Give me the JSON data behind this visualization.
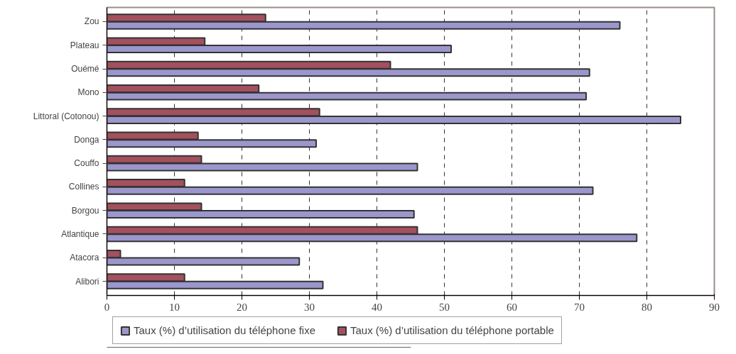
{
  "chart_data": {
    "type": "bar",
    "orientation": "horizontal",
    "categories": [
      "Zou",
      "Plateau",
      "Ouémé",
      "Mono",
      "Littoral (Cotonou)",
      "Donga",
      "Couffo",
      "Collines",
      "Borgou",
      "Atlantique",
      "Atacora",
      "Alibori"
    ],
    "series": [
      {
        "name": "Taux (%) d’utilisation du téléphone fixe",
        "color": "#9b97cc",
        "values": [
          76,
          51,
          71.5,
          71,
          85,
          31,
          46,
          72,
          45.5,
          78.5,
          28.5,
          32
        ]
      },
      {
        "name": "Taux (%) d’utilisation du téléphone portable",
        "color": "#a3505f",
        "values": [
          23.5,
          14.5,
          42,
          22.5,
          31.5,
          13.5,
          14,
          11.5,
          14,
          46,
          2,
          11.5
        ]
      }
    ],
    "xlim": [
      0,
      90
    ],
    "xticks": [
      0,
      10,
      20,
      30,
      40,
      50,
      60,
      70,
      80,
      90
    ],
    "grid": "x",
    "line_style": "dashed",
    "legend": "bottom"
  }
}
